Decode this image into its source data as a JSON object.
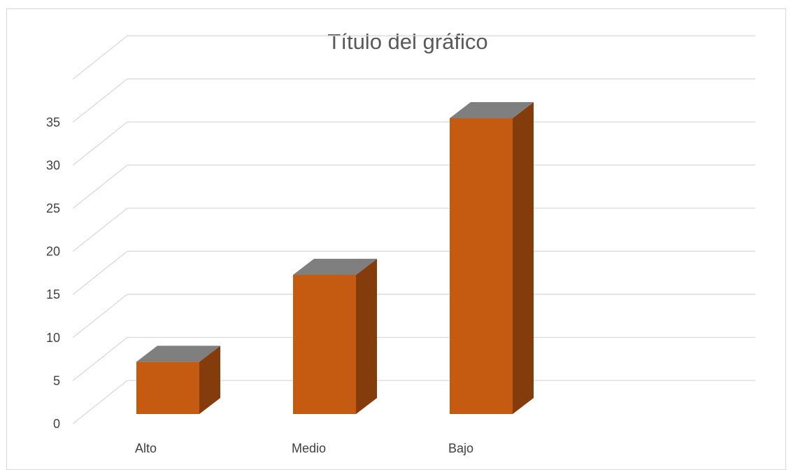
{
  "chart_data": {
    "type": "bar",
    "title": "Título del gráfico",
    "categories": [
      "Alto",
      "Medio",
      "Bajo"
    ],
    "series": [
      {
        "values": [
          6,
          16,
          34
        ]
      }
    ],
    "yticks": [
      "0",
      "5",
      "10",
      "15",
      "20",
      "25",
      "30",
      "35"
    ],
    "ylim": [
      0,
      40
    ],
    "grid": true,
    "legend": "none",
    "three_d": true,
    "colors": {
      "front": "#c55a11",
      "side": "#843c0c",
      "top": "#7f7f7f",
      "grid": "#d9d9d9",
      "text": "#595959"
    }
  }
}
